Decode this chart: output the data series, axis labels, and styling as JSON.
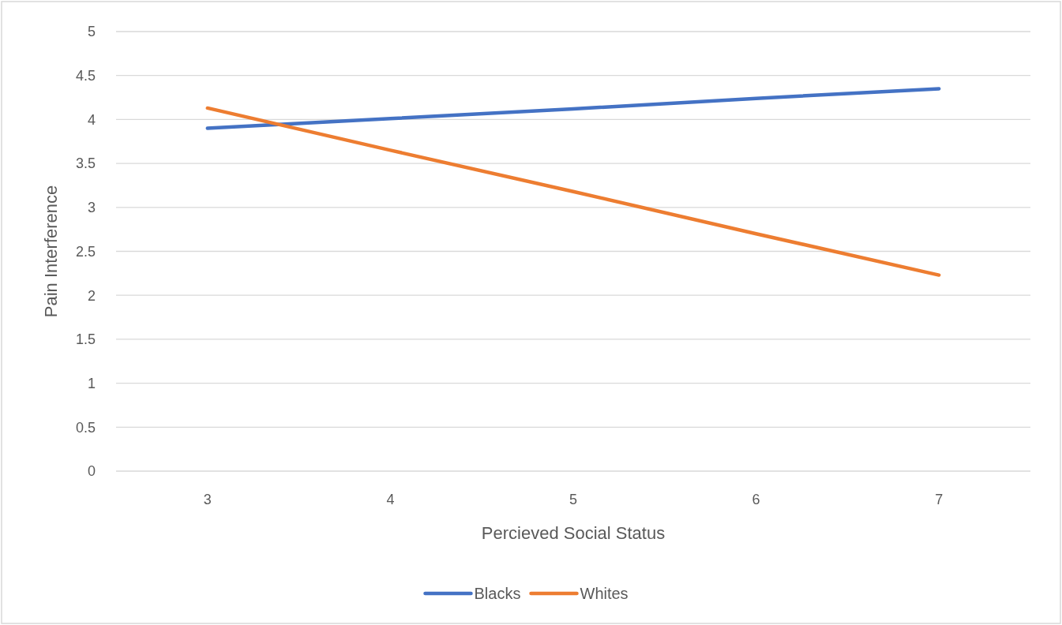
{
  "chart_data": {
    "type": "line",
    "xlabel": "Percieved Social Status",
    "ylabel": "Pain Interference",
    "categories": [
      "3",
      "4",
      "5",
      "6",
      "7"
    ],
    "series": [
      {
        "name": "Blacks",
        "color": "#4472c4",
        "values": [
          3.9,
          4.01,
          4.12,
          4.24,
          4.35
        ]
      },
      {
        "name": "Whites",
        "color": "#ed7d31",
        "values": [
          4.13,
          3.65,
          3.18,
          2.7,
          2.23
        ]
      }
    ],
    "ylim": [
      0,
      5
    ],
    "yticks": [
      0,
      0.5,
      1,
      1.5,
      2,
      2.5,
      3,
      3.5,
      4,
      4.5,
      5
    ],
    "grid": "y",
    "legend": "bottom",
    "marker": "none",
    "line_style": "solid"
  }
}
